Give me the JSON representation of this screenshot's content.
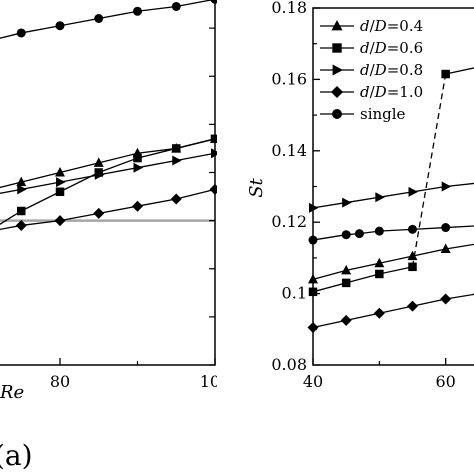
{
  "chart_data": [
    {
      "type": "line",
      "panel": "left",
      "panel_label": "(a)",
      "xlabel": "Re",
      "ylabel": "",
      "xlim": [
        40,
        100
      ],
      "ylim": [
        0.2,
        1.0
      ],
      "x_ticks": [
        80,
        100
      ],
      "x_tick_labels": [
        "80",
        "100"
      ],
      "reference_line": {
        "y": 0.5,
        "color": "#a6a6a6"
      },
      "series": [
        {
          "marker": "circle",
          "x": [
            40,
            45,
            50,
            55,
            60,
            65,
            70,
            75,
            80,
            85,
            90,
            95,
            100
          ],
          "y": [
            0.75,
            0.77,
            0.79,
            0.81,
            0.83,
            0.85,
            0.87,
            0.89,
            0.905,
            0.92,
            0.935,
            0.945,
            0.96
          ]
        },
        {
          "marker": "triangle-up",
          "x": [
            55,
            60,
            65,
            70,
            75,
            80,
            85,
            90,
            95,
            100
          ],
          "y": [
            0.5,
            0.52,
            0.54,
            0.56,
            0.58,
            0.6,
            0.62,
            0.64,
            0.65,
            0.67
          ]
        },
        {
          "marker": "square",
          "x": [
            65,
            70,
            75,
            80,
            85,
            90,
            95,
            100
          ],
          "y": [
            0.47,
            0.47,
            0.52,
            0.56,
            0.6,
            0.63,
            0.65,
            0.67
          ]
        },
        {
          "marker": "triangle-right",
          "x": [
            55,
            60,
            65,
            70,
            75,
            80,
            85,
            90,
            95,
            100
          ],
          "y": [
            0.49,
            0.51,
            0.53,
            0.55,
            0.565,
            0.58,
            0.595,
            0.61,
            0.625,
            0.64
          ]
        },
        {
          "marker": "diamond",
          "x": [
            60,
            65,
            70,
            75,
            80,
            85,
            90,
            95,
            100
          ],
          "y": [
            0.44,
            0.45,
            0.475,
            0.49,
            0.5,
            0.515,
            0.53,
            0.545,
            0.565
          ]
        }
      ]
    },
    {
      "type": "line",
      "panel": "right",
      "xlabel": "",
      "ylabel": "St",
      "xlim": [
        40,
        70
      ],
      "ylim": [
        0.08,
        0.18
      ],
      "x_ticks": [
        40,
        60
      ],
      "x_tick_labels": [
        "40",
        "60"
      ],
      "y_ticks": [
        0.08,
        0.1,
        0.12,
        0.14,
        0.16,
        0.18
      ],
      "y_tick_labels": [
        "0.08",
        "0.1",
        "0.12",
        "0.14",
        "0.16",
        "0.18"
      ],
      "legend_position": "top-left",
      "series": [
        {
          "name": "d/D=0.4",
          "marker": "triangle-up",
          "x": [
            40,
            45,
            50,
            55,
            60,
            65,
            70
          ],
          "y": [
            0.104,
            0.1065,
            0.1085,
            0.1105,
            0.1125,
            0.114,
            0.1155
          ]
        },
        {
          "name": "d/D=0.6",
          "marker": "square",
          "x": [
            40,
            45,
            50,
            55,
            60,
            65
          ],
          "y": [
            0.1005,
            0.103,
            0.1055,
            0.1075,
            0.1615,
            0.1635
          ],
          "jump": {
            "from_x": 55,
            "to_x": 60,
            "style": "dashed"
          }
        },
        {
          "name": "d/D=0.8",
          "marker": "triangle-right",
          "x": [
            40,
            45,
            50,
            55,
            60,
            65,
            70
          ],
          "y": [
            0.124,
            0.1255,
            0.127,
            0.1285,
            0.13,
            0.131,
            0.1325
          ]
        },
        {
          "name": "d/D=1.0",
          "marker": "diamond",
          "x": [
            40,
            45,
            50,
            55,
            60,
            65,
            70
          ],
          "y": [
            0.0905,
            0.0925,
            0.0945,
            0.0965,
            0.0985,
            0.1,
            0.1015
          ]
        },
        {
          "name": "single",
          "marker": "circle",
          "x": [
            40,
            45,
            47,
            50,
            55,
            60,
            65,
            70
          ],
          "y": [
            0.115,
            0.1165,
            0.1168,
            0.1175,
            0.118,
            0.1185,
            0.119,
            0.1195
          ]
        }
      ]
    }
  ]
}
